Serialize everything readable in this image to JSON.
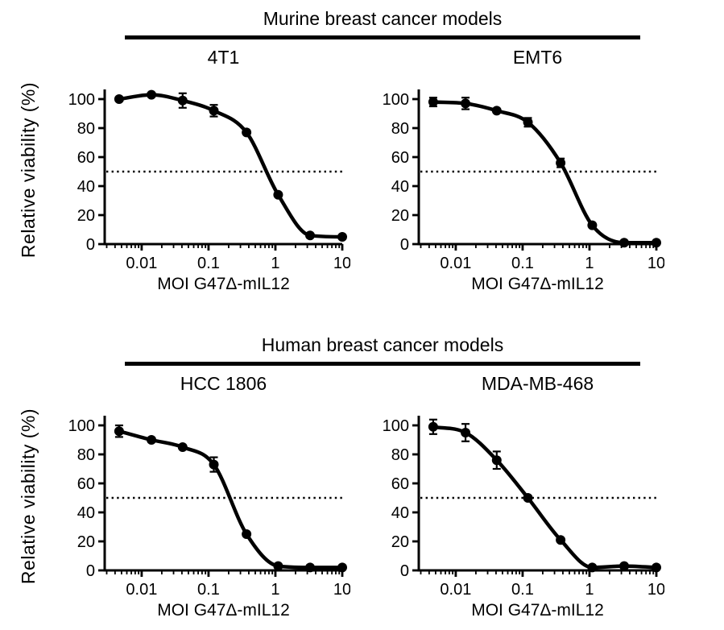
{
  "sections": [
    {
      "title": "Murine breast cancer models",
      "ylabel": "Relative viability (%)"
    },
    {
      "title": "Human breast cancer models",
      "ylabel": "Relative viability (%)"
    }
  ],
  "chart_data": {
    "type": "line",
    "xscale": "log",
    "xlabel": "MOI G47Δ-mIL12",
    "ylabel": "Relative viability (%)",
    "xlim": [
      0.0028,
      10
    ],
    "ylim": [
      0,
      100
    ],
    "xticks": {
      "values": [
        0.01,
        0.1,
        1,
        10
      ],
      "labels": [
        "0.01",
        "0.1",
        "1",
        "10"
      ]
    },
    "yticks": [
      0,
      20,
      40,
      60,
      80,
      100
    ],
    "reference_line_y": 50,
    "grid": false,
    "legend": false,
    "marker": "filled-circle",
    "panels": [
      {
        "title": "4T1",
        "group": "Murine breast cancer models",
        "x": [
          0.0046,
          0.014,
          0.041,
          0.12,
          0.37,
          1.1,
          3.3,
          10
        ],
        "y": [
          100,
          103,
          99,
          92,
          77,
          34,
          6,
          5
        ],
        "yerr": [
          0,
          0,
          5,
          4,
          0,
          0,
          0,
          0
        ]
      },
      {
        "title": "EMT6",
        "group": "Murine breast cancer models",
        "x": [
          0.0046,
          0.014,
          0.041,
          0.12,
          0.37,
          1.1,
          3.3,
          10
        ],
        "y": [
          98,
          97,
          92,
          84,
          56,
          13,
          1,
          1
        ],
        "yerr": [
          3,
          4,
          0,
          3,
          3,
          0,
          0,
          0
        ]
      },
      {
        "title": "HCC 1806",
        "group": "Human breast cancer models",
        "x": [
          0.0046,
          0.014,
          0.041,
          0.12,
          0.37,
          1.1,
          3.3,
          10
        ],
        "y": [
          96,
          90,
          85,
          73,
          25,
          3,
          2,
          2
        ],
        "yerr": [
          4,
          0,
          0,
          5,
          0,
          0,
          0,
          0
        ]
      },
      {
        "title": "MDA-MB-468",
        "group": "Human breast cancer models",
        "x": [
          0.0046,
          0.014,
          0.041,
          0.12,
          0.37,
          1.1,
          3.3,
          10
        ],
        "y": [
          99,
          95,
          76,
          50,
          21,
          2,
          3,
          2
        ],
        "yerr": [
          5,
          6,
          6,
          0,
          0,
          0,
          0,
          0
        ]
      }
    ]
  },
  "style": {
    "ink": "#000000",
    "background": "#ffffff"
  }
}
